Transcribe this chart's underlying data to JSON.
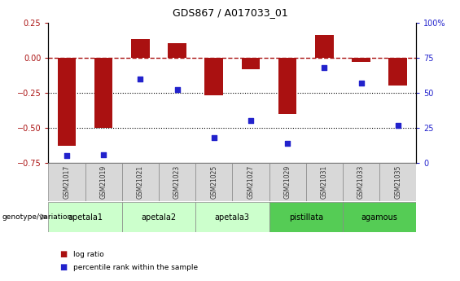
{
  "title": "GDS867 / A017033_01",
  "samples": [
    "GSM21017",
    "GSM21019",
    "GSM21021",
    "GSM21023",
    "GSM21025",
    "GSM21027",
    "GSM21029",
    "GSM21031",
    "GSM21033",
    "GSM21035"
  ],
  "log_ratios": [
    -0.63,
    -0.5,
    0.13,
    0.1,
    -0.27,
    -0.08,
    -0.4,
    0.16,
    -0.03,
    -0.2
  ],
  "percentile_ranks": [
    5,
    6,
    60,
    52,
    18,
    30,
    14,
    68,
    57,
    27
  ],
  "groups": [
    {
      "name": "apetala1",
      "samples": [
        0,
        1
      ],
      "color": "#ccffcc"
    },
    {
      "name": "apetala2",
      "samples": [
        2,
        3
      ],
      "color": "#ccffcc"
    },
    {
      "name": "apetala3",
      "samples": [
        4,
        5
      ],
      "color": "#ccffcc"
    },
    {
      "name": "pistillata",
      "samples": [
        6,
        7
      ],
      "color": "#55cc55"
    },
    {
      "name": "agamous",
      "samples": [
        8,
        9
      ],
      "color": "#55cc55"
    }
  ],
  "bar_color": "#aa1111",
  "dot_color": "#2222cc",
  "left_ylim": [
    -0.75,
    0.25
  ],
  "right_ylim": [
    0,
    100
  ],
  "left_yticks": [
    -0.75,
    -0.5,
    -0.25,
    0,
    0.25
  ],
  "right_yticks": [
    0,
    25,
    50,
    75,
    100
  ],
  "right_yticklabels": [
    "0",
    "25",
    "50",
    "75",
    "100%"
  ],
  "dotted_lines": [
    -0.25,
    -0.5
  ],
  "background_color": "#ffffff",
  "legend_items": [
    "log ratio",
    "percentile rank within the sample"
  ],
  "bar_width": 0.5
}
